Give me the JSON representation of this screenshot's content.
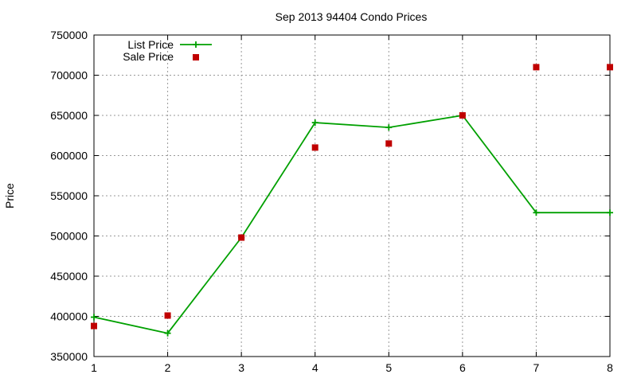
{
  "chart_data": {
    "type": "line",
    "title": "Sep 2013 94404 Condo Prices",
    "xlabel": "",
    "ylabel": "Price",
    "xlim": [
      1,
      8
    ],
    "ylim": [
      350000,
      750000
    ],
    "x_ticks": [
      1,
      2,
      3,
      4,
      5,
      6,
      7,
      8
    ],
    "y_ticks": [
      350000,
      400000,
      450000,
      500000,
      550000,
      600000,
      650000,
      700000,
      750000
    ],
    "grid": true,
    "legend_position": "top-left",
    "x": [
      1,
      2,
      3,
      4,
      5,
      6,
      7,
      8
    ],
    "series": [
      {
        "name": "List Price",
        "style": "line+cross",
        "color": "#00a000",
        "values": [
          399000,
          379000,
          498000,
          641000,
          635000,
          650000,
          529000,
          529000
        ]
      },
      {
        "name": "Sale Price",
        "style": "square-markers",
        "color": "#c00000",
        "values": [
          388000,
          401000,
          498000,
          610000,
          615000,
          650000,
          710000,
          710000
        ]
      }
    ]
  }
}
